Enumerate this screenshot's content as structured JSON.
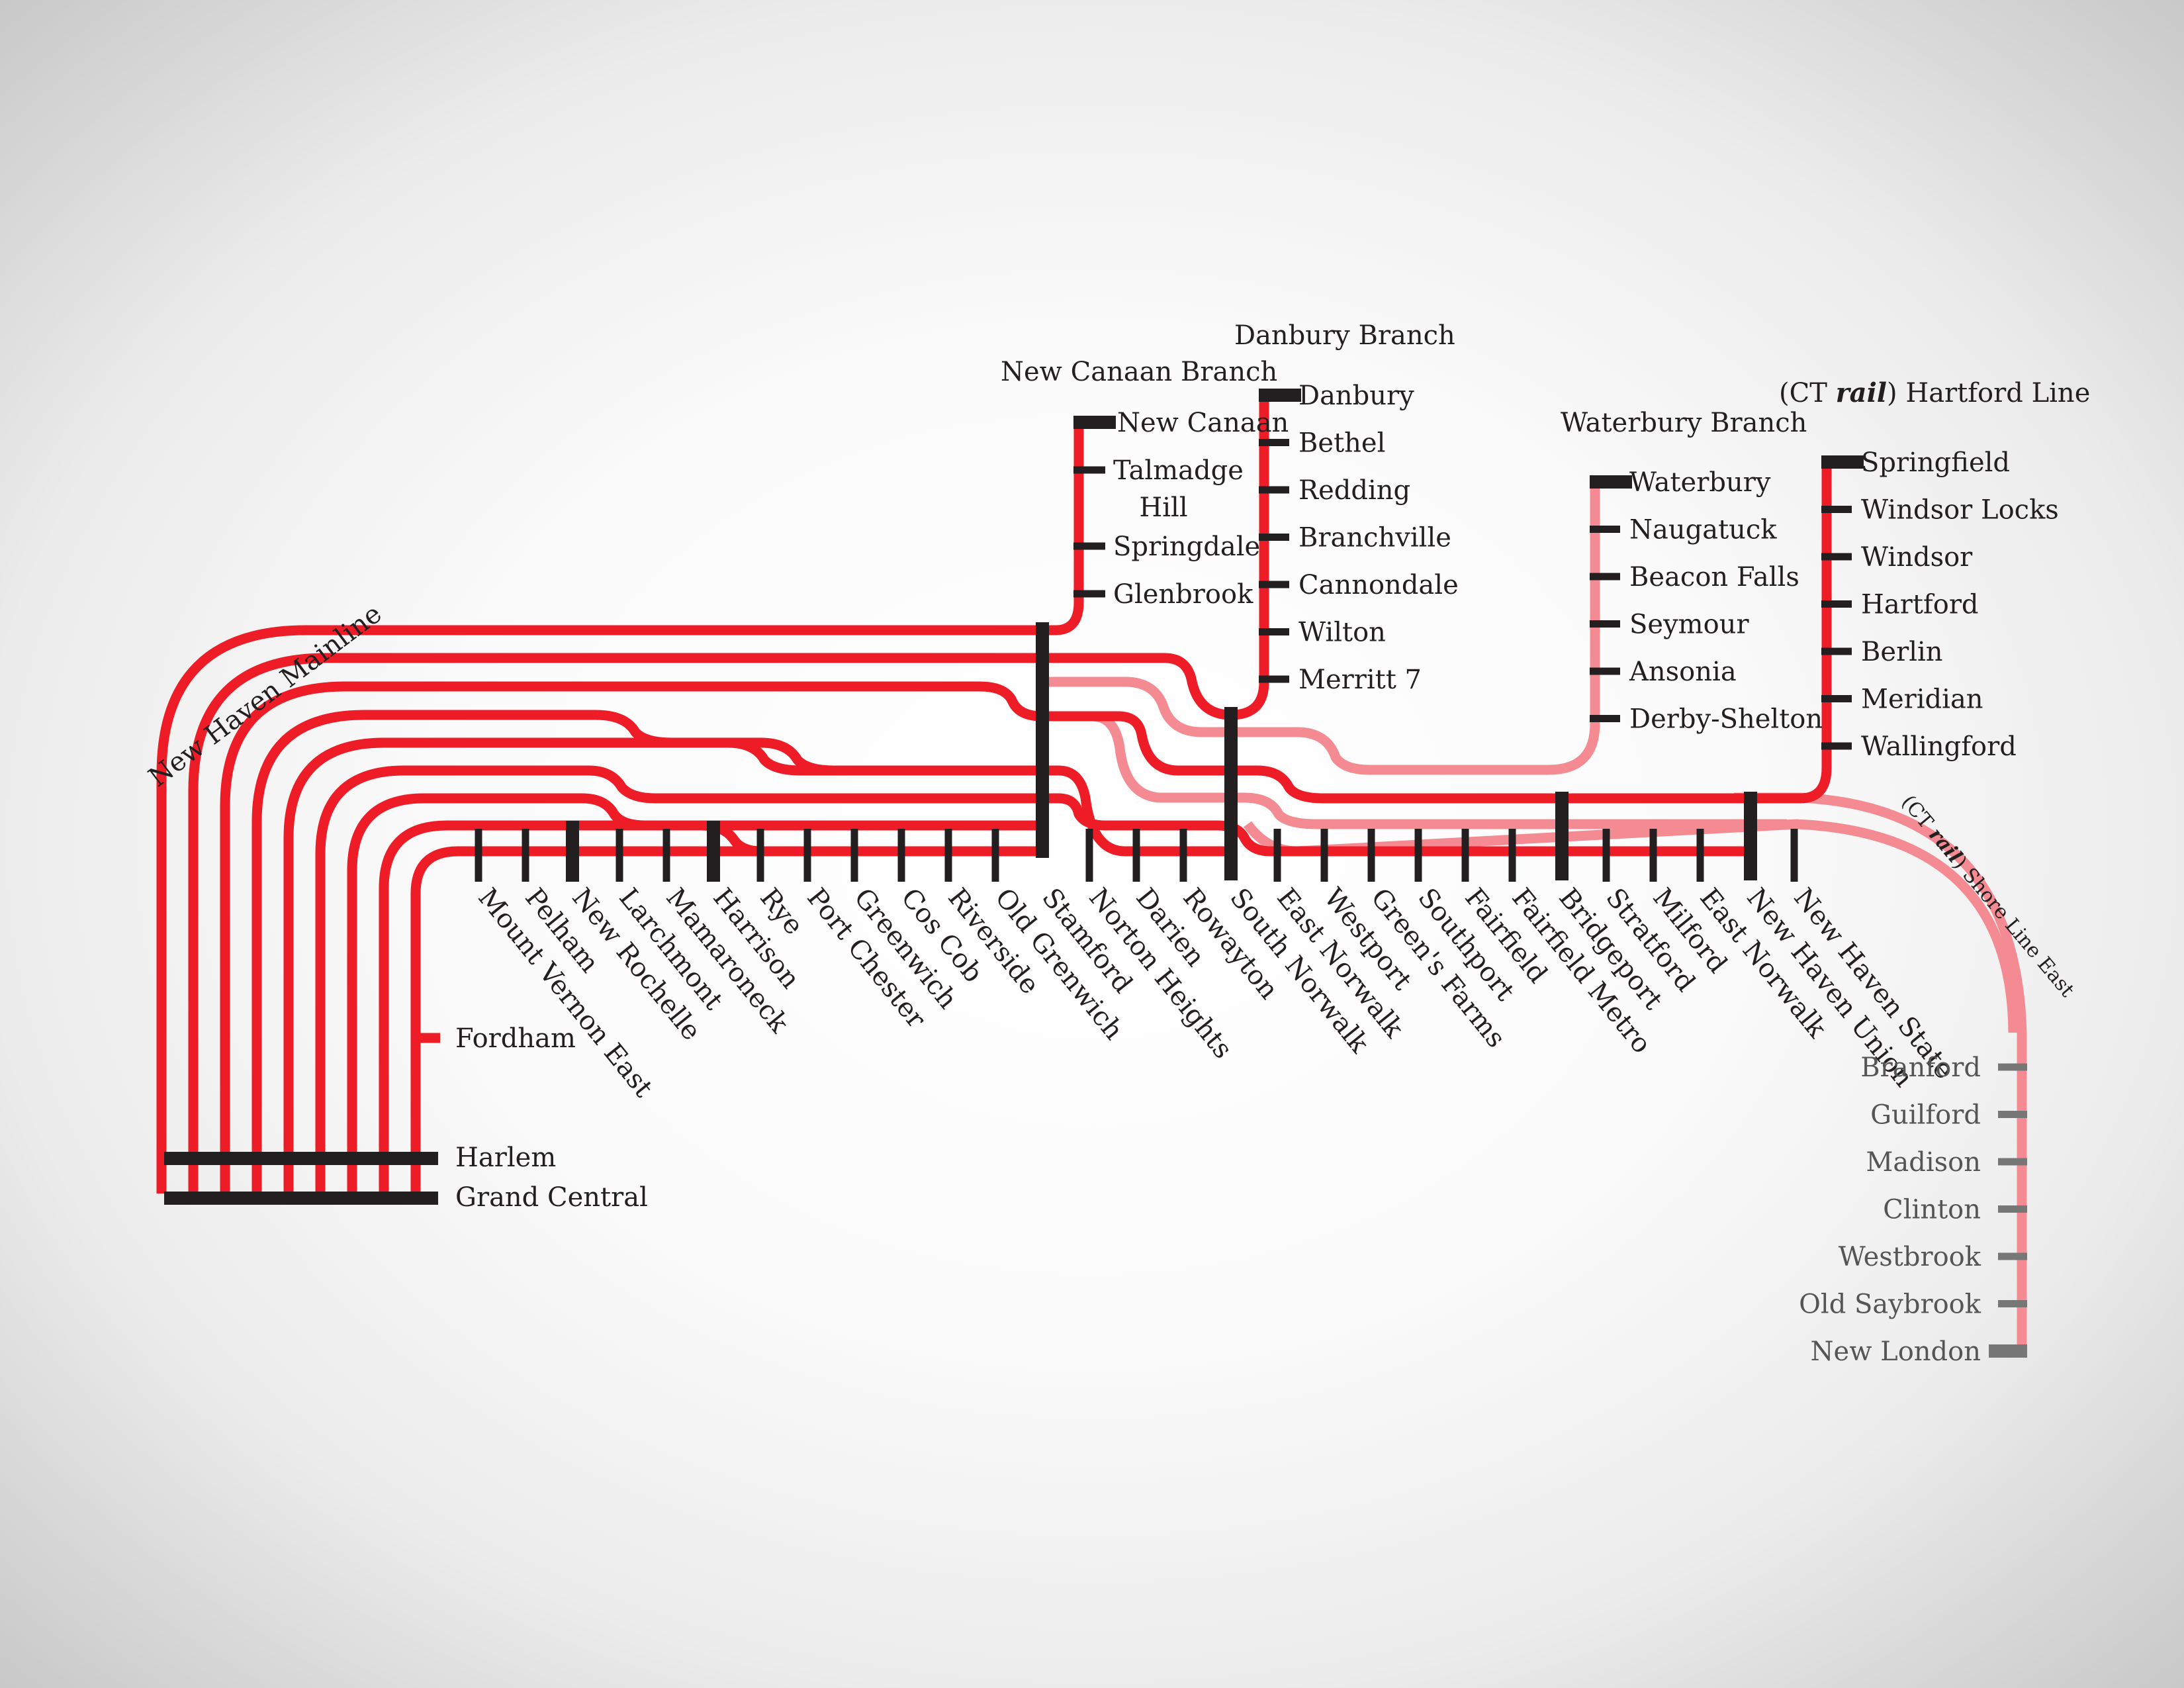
{
  "titles": {
    "new_haven_mainline": "New Haven Mainline",
    "new_canaan_branch": "New Canaan Branch",
    "danbury_branch": "Danbury Branch",
    "waterbury_branch": "Waterbury Branch",
    "hartford_line": {
      "pre": "(CT ",
      "rail": "rail",
      "post": ") Hartford Line"
    },
    "shore_line_east": {
      "pre": "(CT ",
      "rail": "rail",
      "post": ") Shore Line East"
    }
  },
  "terminals": {
    "fordham": "Fordham",
    "harlem": "Harlem",
    "grand_central": "Grand Central"
  },
  "mainline_stations": [
    "Mount Vernon East",
    "Pelham",
    "New Rochelle",
    "Larchmont",
    "Mamaroneck",
    "Harrison",
    "Rye",
    "Port Chester",
    "Greenwich",
    "Cos Cob",
    "Riverside",
    "Old Grenwich",
    "Stamford",
    "Norton Heights",
    "Darien",
    "Rowayton",
    "South Norwalk",
    "East Norwalk",
    "Westport",
    "Green's Farms",
    "Southport",
    "Fairfield",
    "Fairfield Metro",
    "Bridgeport",
    "Stratford",
    "Milford",
    "East Norwalk",
    "New Haven Union",
    "New Haven State"
  ],
  "new_canaan_stations": [
    "New Canaan",
    "Talmadge",
    "Hill",
    "Springdale",
    "Glenbrook"
  ],
  "danbury_stations": [
    "Danbury",
    "Bethel",
    "Redding",
    "Branchville",
    "Cannondale",
    "Wilton",
    "Merritt 7"
  ],
  "waterbury_stations": [
    "Waterbury",
    "Naugatuck",
    "Beacon Falls",
    "Seymour",
    "Ansonia",
    "Derby-Shelton"
  ],
  "hartford_stations": [
    "Springfield",
    "Windsor Locks",
    "Windsor",
    "Hartford",
    "Berlin",
    "Meridian",
    "Wallingford"
  ],
  "shore_line_stations": [
    "Branford",
    "Guilford",
    "Madison",
    "Clinton",
    "Westbrook",
    "Old Saybrook",
    "New London"
  ],
  "colors": {
    "line": "#ee1c26",
    "line_faint": "#f48b93",
    "station": "#231f20",
    "station_gray": "#777777"
  }
}
